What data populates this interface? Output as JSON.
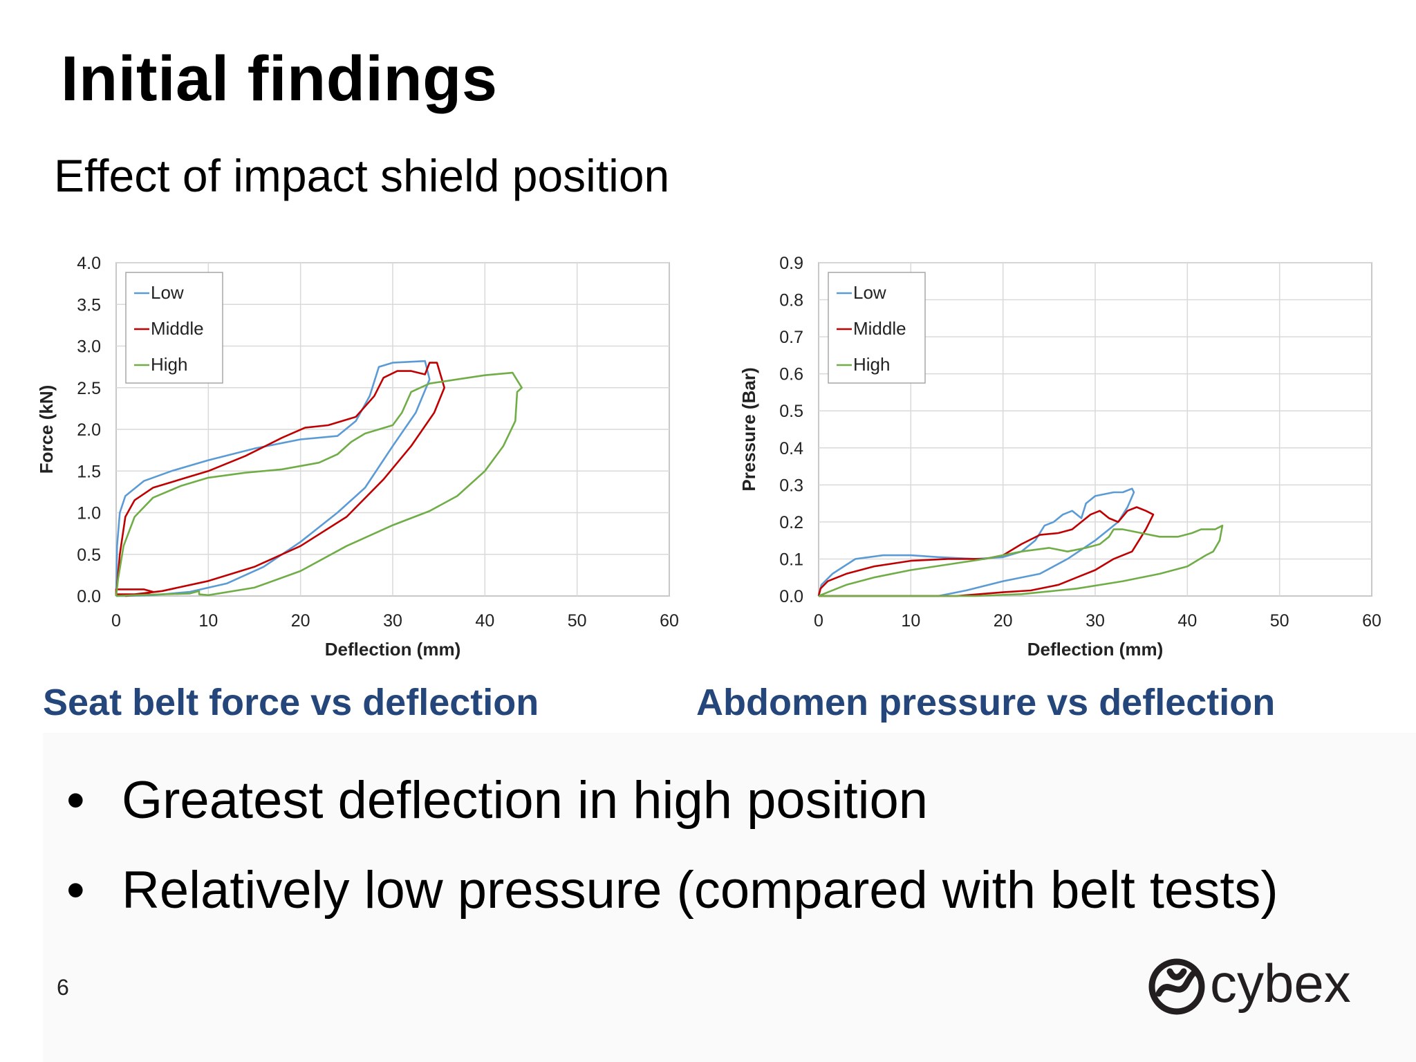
{
  "slide": {
    "title": "Initial findings",
    "subtitle": "Effect of impact shield position",
    "bullets": [
      "Greatest deflection in high position",
      "Relatively low pressure (compared with belt tests)"
    ],
    "page_number": "6",
    "logo_text": "cybex"
  },
  "colors": {
    "low": "#5b9bd5",
    "middle": "#c00000",
    "high": "#70ad47",
    "caption": "#24467a"
  },
  "chart_data": [
    {
      "type": "line",
      "caption": "Seat belt force vs deflection",
      "xlabel": "Deflection (mm)",
      "ylabel": "Force (kN)",
      "xlim": [
        0,
        60
      ],
      "ylim": [
        0,
        4
      ],
      "xticks": [
        "0",
        "10",
        "20",
        "30",
        "40",
        "50",
        "60"
      ],
      "yticks": [
        "0.0",
        "0.5",
        "1.0",
        "1.5",
        "2.0",
        "2.5",
        "3.0",
        "3.5",
        "4.0"
      ],
      "grid": true,
      "legend": "top-left",
      "series": [
        {
          "name": "Low",
          "color_key": "low",
          "points": [
            [
              0,
              0
            ],
            [
              0.1,
              0.6
            ],
            [
              0.4,
              1.0
            ],
            [
              1,
              1.2
            ],
            [
              3,
              1.38
            ],
            [
              6,
              1.5
            ],
            [
              10,
              1.63
            ],
            [
              15,
              1.77
            ],
            [
              20,
              1.88
            ],
            [
              24,
              1.92
            ],
            [
              26,
              2.1
            ],
            [
              27.5,
              2.4
            ],
            [
              28.5,
              2.75
            ],
            [
              30,
              2.8
            ],
            [
              33.5,
              2.82
            ],
            [
              34,
              2.6
            ],
            [
              32.5,
              2.2
            ],
            [
              30,
              1.8
            ],
            [
              27,
              1.3
            ],
            [
              24,
              1.0
            ],
            [
              20,
              0.65
            ],
            [
              16,
              0.35
            ],
            [
              12,
              0.15
            ],
            [
              8,
              0.05
            ],
            [
              4,
              0.01
            ],
            [
              1,
              0
            ],
            [
              0,
              0
            ]
          ]
        },
        {
          "name": "Middle",
          "color_key": "middle",
          "points": [
            [
              0,
              0
            ],
            [
              0.4,
              0.5
            ],
            [
              1,
              0.95
            ],
            [
              2,
              1.15
            ],
            [
              4,
              1.3
            ],
            [
              7,
              1.4
            ],
            [
              10,
              1.5
            ],
            [
              14,
              1.68
            ],
            [
              18,
              1.9
            ],
            [
              20.5,
              2.02
            ],
            [
              23,
              2.05
            ],
            [
              26,
              2.15
            ],
            [
              28,
              2.4
            ],
            [
              29,
              2.62
            ],
            [
              30.5,
              2.7
            ],
            [
              32,
              2.7
            ],
            [
              33.5,
              2.66
            ],
            [
              34,
              2.8
            ],
            [
              34.8,
              2.8
            ],
            [
              35.6,
              2.5
            ],
            [
              34.5,
              2.2
            ],
            [
              32,
              1.8
            ],
            [
              29,
              1.4
            ],
            [
              25,
              0.95
            ],
            [
              20,
              0.6
            ],
            [
              15,
              0.35
            ],
            [
              10,
              0.18
            ],
            [
              5,
              0.06
            ],
            [
              2,
              0.02
            ],
            [
              0,
              0.02
            ],
            [
              0,
              0.08
            ],
            [
              3,
              0.08
            ],
            [
              4,
              0.05
            ],
            [
              3,
              0.02
            ],
            [
              1,
              0
            ]
          ]
        },
        {
          "name": "High",
          "color_key": "high",
          "points": [
            [
              0,
              0
            ],
            [
              0.2,
              0.2
            ],
            [
              0.8,
              0.6
            ],
            [
              2,
              0.95
            ],
            [
              4,
              1.18
            ],
            [
              7,
              1.32
            ],
            [
              10,
              1.42
            ],
            [
              14,
              1.48
            ],
            [
              18,
              1.52
            ],
            [
              22,
              1.6
            ],
            [
              24,
              1.7
            ],
            [
              25.5,
              1.85
            ],
            [
              27,
              1.95
            ],
            [
              30,
              2.05
            ],
            [
              31,
              2.2
            ],
            [
              32,
              2.45
            ],
            [
              34,
              2.55
            ],
            [
              37,
              2.6
            ],
            [
              40,
              2.65
            ],
            [
              43,
              2.68
            ],
            [
              44,
              2.5
            ],
            [
              43.5,
              2.45
            ],
            [
              43.3,
              2.1
            ],
            [
              42,
              1.8
            ],
            [
              40,
              1.5
            ],
            [
              37,
              1.2
            ],
            [
              34,
              1.02
            ],
            [
              30,
              0.85
            ],
            [
              25,
              0.6
            ],
            [
              20,
              0.3
            ],
            [
              15,
              0.1
            ],
            [
              10,
              0.01
            ],
            [
              9,
              0.02
            ],
            [
              9,
              0.06
            ],
            [
              8,
              0.03
            ],
            [
              5,
              0.02
            ],
            [
              2,
              0.01
            ],
            [
              0,
              0
            ]
          ]
        }
      ]
    },
    {
      "type": "line",
      "caption": "Abdomen pressure vs deflection",
      "xlabel": "Deflection (mm)",
      "ylabel": "Pressure (Bar)",
      "xlim": [
        0,
        60
      ],
      "ylim": [
        0,
        0.9
      ],
      "xticks": [
        "0",
        "10",
        "20",
        "30",
        "40",
        "50",
        "60"
      ],
      "yticks": [
        "0.0",
        "0.1",
        "0.2",
        "0.3",
        "0.4",
        "0.5",
        "0.6",
        "0.7",
        "0.8",
        "0.9"
      ],
      "grid": true,
      "legend": "top-left",
      "series": [
        {
          "name": "Low",
          "color_key": "low",
          "points": [
            [
              0,
              0
            ],
            [
              0.3,
              0.03
            ],
            [
              1.5,
              0.06
            ],
            [
              4,
              0.1
            ],
            [
              7,
              0.11
            ],
            [
              10,
              0.11
            ],
            [
              13,
              0.105
            ],
            [
              17,
              0.1
            ],
            [
              20,
              0.105
            ],
            [
              22,
              0.12
            ],
            [
              23.5,
              0.15
            ],
            [
              24.5,
              0.19
            ],
            [
              25.5,
              0.2
            ],
            [
              26.5,
              0.22
            ],
            [
              27.5,
              0.23
            ],
            [
              28.5,
              0.21
            ],
            [
              29,
              0.25
            ],
            [
              30,
              0.27
            ],
            [
              32,
              0.28
            ],
            [
              33,
              0.28
            ],
            [
              34,
              0.29
            ],
            [
              34.2,
              0.28
            ],
            [
              33.5,
              0.24
            ],
            [
              32.5,
              0.2
            ],
            [
              30,
              0.15
            ],
            [
              27,
              0.1
            ],
            [
              24,
              0.06
            ],
            [
              20,
              0.04
            ],
            [
              16,
              0.015
            ],
            [
              13,
              0
            ],
            [
              9,
              0
            ],
            [
              5,
              0
            ],
            [
              2,
              0
            ],
            [
              0,
              0
            ]
          ]
        },
        {
          "name": "Middle",
          "color_key": "middle",
          "points": [
            [
              0,
              0.0
            ],
            [
              0.2,
              0.02
            ],
            [
              1,
              0.04
            ],
            [
              3,
              0.06
            ],
            [
              6,
              0.08
            ],
            [
              10,
              0.095
            ],
            [
              14,
              0.1
            ],
            [
              18,
              0.1
            ],
            [
              20,
              0.11
            ],
            [
              22,
              0.14
            ],
            [
              24,
              0.165
            ],
            [
              26,
              0.17
            ],
            [
              27.5,
              0.18
            ],
            [
              28.5,
              0.2
            ],
            [
              29.5,
              0.22
            ],
            [
              30.5,
              0.23
            ],
            [
              31.5,
              0.21
            ],
            [
              32.5,
              0.2
            ],
            [
              33.5,
              0.23
            ],
            [
              34.5,
              0.24
            ],
            [
              35.5,
              0.23
            ],
            [
              36.3,
              0.22
            ],
            [
              35.5,
              0.18
            ],
            [
              34,
              0.12
            ],
            [
              32,
              0.1
            ],
            [
              30,
              0.07
            ],
            [
              28,
              0.05
            ],
            [
              26,
              0.03
            ],
            [
              23,
              0.015
            ],
            [
              20,
              0.01
            ],
            [
              15,
              0
            ],
            [
              5,
              0
            ],
            [
              1,
              0
            ],
            [
              0,
              0
            ]
          ]
        },
        {
          "name": "High",
          "color_key": "high",
          "points": [
            [
              0,
              0
            ],
            [
              1,
              0.01
            ],
            [
              3,
              0.03
            ],
            [
              6,
              0.05
            ],
            [
              10,
              0.07
            ],
            [
              14,
              0.085
            ],
            [
              18,
              0.1
            ],
            [
              22,
              0.12
            ],
            [
              25,
              0.13
            ],
            [
              27,
              0.12
            ],
            [
              29,
              0.13
            ],
            [
              30.5,
              0.14
            ],
            [
              31.5,
              0.16
            ],
            [
              32,
              0.18
            ],
            [
              33,
              0.18
            ],
            [
              35,
              0.17
            ],
            [
              37,
              0.16
            ],
            [
              39,
              0.16
            ],
            [
              40.5,
              0.17
            ],
            [
              41.5,
              0.18
            ],
            [
              43,
              0.18
            ],
            [
              43.8,
              0.19
            ],
            [
              43.5,
              0.15
            ],
            [
              42.8,
              0.12
            ],
            [
              42,
              0.11
            ],
            [
              40,
              0.08
            ],
            [
              37,
              0.06
            ],
            [
              33,
              0.04
            ],
            [
              28,
              0.02
            ],
            [
              22,
              0.005
            ],
            [
              17,
              0
            ],
            [
              10,
              0
            ],
            [
              2,
              0
            ],
            [
              0,
              0
            ]
          ]
        }
      ]
    }
  ]
}
